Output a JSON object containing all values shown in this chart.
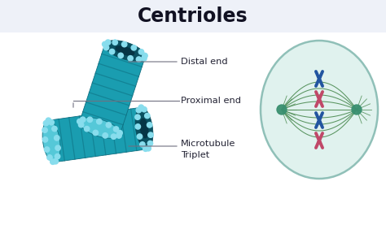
{
  "title": "Centrioles",
  "title_fontsize": 17,
  "title_fontweight": "bold",
  "bg_top": "#eef1f8",
  "bg_main": "#ffffff",
  "label_distal": "Distal end",
  "label_proximal": "Proximal end",
  "label_microtubule": "Microtubule\nTriplet",
  "centriole_body": "#1a9db0",
  "centriole_stripe": "#0d6e80",
  "centriole_dark_end": "#0a5060",
  "centriole_inner": "#063545",
  "centriole_light": "#55c8d8",
  "dot_color": "#88dded",
  "cell_outline": "#90c0b8",
  "cell_fill": "#e0f2ee",
  "spindle_color": "#4a8a50",
  "chromosome_blue": "#2255a0",
  "chromosome_pink": "#c04868",
  "centrosome_color": "#3a9070",
  "line_color": "#707080",
  "label_color": "#222233"
}
